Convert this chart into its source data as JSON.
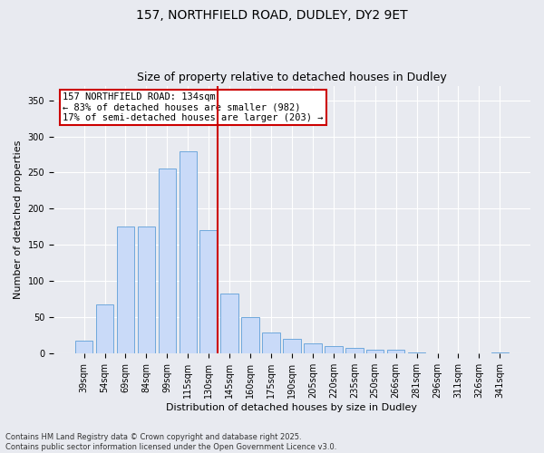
{
  "title1": "157, NORTHFIELD ROAD, DUDLEY, DY2 9ET",
  "title2": "Size of property relative to detached houses in Dudley",
  "xlabel": "Distribution of detached houses by size in Dudley",
  "ylabel": "Number of detached properties",
  "bar_labels": [
    "39sqm",
    "54sqm",
    "69sqm",
    "84sqm",
    "99sqm",
    "115sqm",
    "130sqm",
    "145sqm",
    "160sqm",
    "175sqm",
    "190sqm",
    "205sqm",
    "220sqm",
    "235sqm",
    "250sqm",
    "266sqm",
    "281sqm",
    "296sqm",
    "311sqm",
    "326sqm",
    "341sqm"
  ],
  "bar_values": [
    18,
    68,
    175,
    175,
    255,
    280,
    170,
    83,
    51,
    29,
    21,
    14,
    10,
    8,
    6,
    5,
    2,
    1,
    1,
    0,
    2
  ],
  "bar_color": "#c9daf8",
  "bar_edge_color": "#6fa8dc",
  "vline_color": "#cc0000",
  "annotation_text": "157 NORTHFIELD ROAD: 134sqm\n← 83% of detached houses are smaller (982)\n17% of semi-detached houses are larger (203) →",
  "annotation_box_color": "#ffffff",
  "annotation_box_edge": "#cc0000",
  "ylim": [
    0,
    370
  ],
  "yticks": [
    0,
    50,
    100,
    150,
    200,
    250,
    300,
    350
  ],
  "background_color": "#e8eaf0",
  "footnote": "Contains HM Land Registry data © Crown copyright and database right 2025.\nContains public sector information licensed under the Open Government Licence v3.0.",
  "title_fontsize": 10,
  "subtitle_fontsize": 9,
  "axis_label_fontsize": 8,
  "tick_fontsize": 7,
  "annotation_fontsize": 7.5,
  "footnote_fontsize": 6
}
